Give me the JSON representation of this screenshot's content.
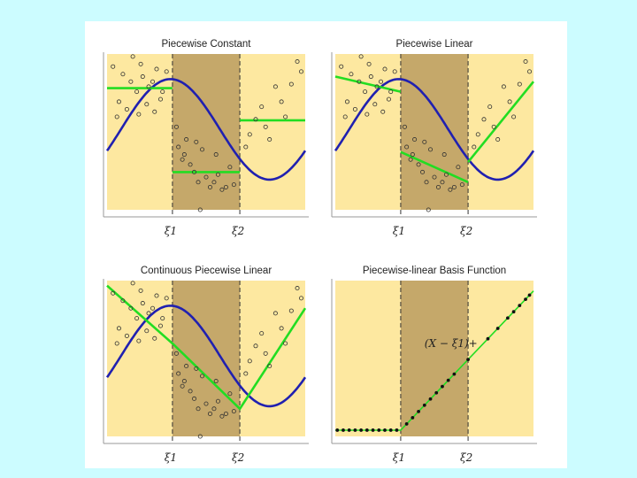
{
  "colors": {
    "page_bg": "#ccfcff",
    "sheet_bg": "#ffffff",
    "outer_region": "#fde8a0",
    "middle_region": "#c5a86a",
    "true_curve": "#2020b0",
    "fit_line": "#22dd22",
    "knot_line": "#333333",
    "points": "#333333"
  },
  "chart_data": [
    {
      "type": "scatter",
      "title": "Piecewise Constant",
      "xlim": [
        0,
        1
      ],
      "ylim": [
        -1.6,
        1.5
      ],
      "knots": [
        0.33,
        0.67
      ],
      "knot_labels": [
        "ξ1",
        "ξ2"
      ],
      "curve": {
        "name": "true function",
        "function": "sin(2*pi*(x-0.07))",
        "x": [
          0,
          1
        ]
      },
      "points": [
        [
          0.03,
          1.25
        ],
        [
          0.06,
          0.55
        ],
        [
          0.08,
          1.1
        ],
        [
          0.12,
          0.95
        ],
        [
          0.13,
          1.45
        ],
        [
          0.15,
          0.75
        ],
        [
          0.17,
          1.3
        ],
        [
          0.18,
          1.05
        ],
        [
          0.21,
          0.85
        ],
        [
          0.23,
          0.95
        ],
        [
          0.25,
          1.2
        ],
        [
          0.27,
          0.6
        ],
        [
          0.05,
          0.25
        ],
        [
          0.1,
          0.4
        ],
        [
          0.16,
          0.3
        ],
        [
          0.2,
          0.5
        ],
        [
          0.24,
          0.35
        ],
        [
          0.28,
          0.75
        ],
        [
          0.3,
          1.15
        ],
        [
          0.36,
          -0.35
        ],
        [
          0.38,
          -0.6
        ],
        [
          0.4,
          -0.2
        ],
        [
          0.42,
          -0.7
        ],
        [
          0.44,
          -0.85
        ],
        [
          0.46,
          -1.05
        ],
        [
          0.48,
          -0.4
        ],
        [
          0.5,
          -0.95
        ],
        [
          0.52,
          -1.15
        ],
        [
          0.54,
          -1.05
        ],
        [
          0.56,
          -0.9
        ],
        [
          0.58,
          -1.2
        ],
        [
          0.6,
          -1.15
        ],
        [
          0.62,
          -0.75
        ],
        [
          0.47,
          -1.6
        ],
        [
          0.35,
          0.05
        ],
        [
          0.39,
          -0.5
        ],
        [
          0.45,
          -0.25
        ],
        [
          0.55,
          -0.5
        ],
        [
          0.64,
          -1.1
        ],
        [
          0.72,
          -0.1
        ],
        [
          0.75,
          0.2
        ],
        [
          0.78,
          0.45
        ],
        [
          0.8,
          0.05
        ],
        [
          0.82,
          -0.2
        ],
        [
          0.85,
          0.85
        ],
        [
          0.88,
          0.55
        ],
        [
          0.9,
          0.25
        ],
        [
          0.93,
          0.9
        ],
        [
          0.96,
          1.35
        ],
        [
          0.98,
          1.15
        ],
        [
          0.7,
          -0.35
        ]
      ],
      "fit": [
        {
          "x": [
            0,
            0.33
          ],
          "y": [
            0.82,
            0.82
          ]
        },
        {
          "x": [
            0.33,
            0.67
          ],
          "y": [
            -0.85,
            -0.85
          ]
        },
        {
          "x": [
            0.67,
            1.0
          ],
          "y": [
            0.18,
            0.18
          ]
        }
      ],
      "annotation": ""
    },
    {
      "type": "scatter",
      "title": "Piecewise Linear",
      "xlim": [
        0,
        1
      ],
      "ylim": [
        -1.6,
        1.5
      ],
      "knots": [
        0.33,
        0.67
      ],
      "knot_labels": [
        "ξ1",
        "ξ2"
      ],
      "curve": {
        "name": "true function",
        "function": "sin(2*pi*(x-0.07))",
        "x": [
          0,
          1
        ]
      },
      "points": [
        [
          0.03,
          1.25
        ],
        [
          0.06,
          0.55
        ],
        [
          0.08,
          1.1
        ],
        [
          0.12,
          0.95
        ],
        [
          0.13,
          1.45
        ],
        [
          0.15,
          0.75
        ],
        [
          0.17,
          1.3
        ],
        [
          0.18,
          1.05
        ],
        [
          0.21,
          0.85
        ],
        [
          0.23,
          0.95
        ],
        [
          0.25,
          1.2
        ],
        [
          0.27,
          0.6
        ],
        [
          0.05,
          0.25
        ],
        [
          0.1,
          0.4
        ],
        [
          0.16,
          0.3
        ],
        [
          0.2,
          0.5
        ],
        [
          0.24,
          0.35
        ],
        [
          0.28,
          0.75
        ],
        [
          0.3,
          1.15
        ],
        [
          0.36,
          -0.35
        ],
        [
          0.38,
          -0.6
        ],
        [
          0.4,
          -0.2
        ],
        [
          0.42,
          -0.7
        ],
        [
          0.44,
          -0.85
        ],
        [
          0.46,
          -1.05
        ],
        [
          0.48,
          -0.4
        ],
        [
          0.5,
          -0.95
        ],
        [
          0.52,
          -1.15
        ],
        [
          0.54,
          -1.05
        ],
        [
          0.56,
          -0.9
        ],
        [
          0.58,
          -1.2
        ],
        [
          0.6,
          -1.15
        ],
        [
          0.62,
          -0.75
        ],
        [
          0.47,
          -1.6
        ],
        [
          0.35,
          0.05
        ],
        [
          0.39,
          -0.5
        ],
        [
          0.45,
          -0.25
        ],
        [
          0.55,
          -0.5
        ],
        [
          0.64,
          -1.1
        ],
        [
          0.72,
          -0.1
        ],
        [
          0.75,
          0.2
        ],
        [
          0.78,
          0.45
        ],
        [
          0.8,
          0.05
        ],
        [
          0.82,
          -0.2
        ],
        [
          0.85,
          0.85
        ],
        [
          0.88,
          0.55
        ],
        [
          0.9,
          0.25
        ],
        [
          0.93,
          0.9
        ],
        [
          0.96,
          1.35
        ],
        [
          0.98,
          1.15
        ],
        [
          0.7,
          -0.35
        ]
      ],
      "fit": [
        {
          "x": [
            0,
            0.33
          ],
          "y": [
            1.05,
            0.75
          ]
        },
        {
          "x": [
            0.33,
            0.67
          ],
          "y": [
            -0.45,
            -1.05
          ]
        },
        {
          "x": [
            0.67,
            1.0
          ],
          "y": [
            -0.65,
            0.95
          ]
        }
      ],
      "annotation": ""
    },
    {
      "type": "scatter",
      "title": "Continuous Piecewise Linear",
      "xlim": [
        0,
        1
      ],
      "ylim": [
        -1.6,
        1.5
      ],
      "knots": [
        0.33,
        0.67
      ],
      "knot_labels": [
        "ξ1",
        "ξ2"
      ],
      "curve": {
        "name": "true function",
        "function": "sin(2*pi*(x-0.07))",
        "x": [
          0,
          1
        ]
      },
      "points": [
        [
          0.03,
          1.25
        ],
        [
          0.06,
          0.55
        ],
        [
          0.08,
          1.1
        ],
        [
          0.12,
          0.95
        ],
        [
          0.13,
          1.45
        ],
        [
          0.15,
          0.75
        ],
        [
          0.17,
          1.3
        ],
        [
          0.18,
          1.05
        ],
        [
          0.21,
          0.85
        ],
        [
          0.23,
          0.95
        ],
        [
          0.25,
          1.2
        ],
        [
          0.27,
          0.6
        ],
        [
          0.05,
          0.25
        ],
        [
          0.1,
          0.4
        ],
        [
          0.16,
          0.3
        ],
        [
          0.2,
          0.5
        ],
        [
          0.24,
          0.35
        ],
        [
          0.28,
          0.75
        ],
        [
          0.3,
          1.15
        ],
        [
          0.36,
          -0.35
        ],
        [
          0.38,
          -0.6
        ],
        [
          0.4,
          -0.2
        ],
        [
          0.42,
          -0.7
        ],
        [
          0.44,
          -0.85
        ],
        [
          0.46,
          -1.05
        ],
        [
          0.48,
          -0.4
        ],
        [
          0.5,
          -0.95
        ],
        [
          0.52,
          -1.15
        ],
        [
          0.54,
          -1.05
        ],
        [
          0.56,
          -0.9
        ],
        [
          0.58,
          -1.2
        ],
        [
          0.6,
          -1.15
        ],
        [
          0.62,
          -0.75
        ],
        [
          0.47,
          -1.6
        ],
        [
          0.35,
          0.05
        ],
        [
          0.39,
          -0.5
        ],
        [
          0.45,
          -0.25
        ],
        [
          0.55,
          -0.5
        ],
        [
          0.64,
          -1.1
        ],
        [
          0.72,
          -0.1
        ],
        [
          0.75,
          0.2
        ],
        [
          0.78,
          0.45
        ],
        [
          0.8,
          0.05
        ],
        [
          0.82,
          -0.2
        ],
        [
          0.85,
          0.85
        ],
        [
          0.88,
          0.55
        ],
        [
          0.9,
          0.25
        ],
        [
          0.93,
          0.9
        ],
        [
          0.96,
          1.35
        ],
        [
          0.98,
          1.15
        ],
        [
          0.7,
          -0.35
        ]
      ],
      "fit": [
        {
          "x": [
            0,
            0.33,
            0.67,
            1.0
          ],
          "y": [
            1.4,
            0.25,
            -1.05,
            0.95
          ]
        }
      ],
      "annotation": ""
    },
    {
      "type": "line",
      "title": "Piecewise-linear Basis Function",
      "xlim": [
        0,
        1
      ],
      "ylim": [
        -0.03,
        0.72
      ],
      "knots": [
        0.33,
        0.67
      ],
      "knot_labels": [
        "ξ1",
        "ξ2"
      ],
      "basis_knot": 0.33,
      "points": [
        [
          0.01,
          0
        ],
        [
          0.04,
          0
        ],
        [
          0.07,
          0
        ],
        [
          0.1,
          0
        ],
        [
          0.13,
          0
        ],
        [
          0.16,
          0
        ],
        [
          0.19,
          0
        ],
        [
          0.22,
          0
        ],
        [
          0.25,
          0
        ],
        [
          0.28,
          0
        ],
        [
          0.31,
          0
        ],
        [
          0.36,
          0.03
        ],
        [
          0.39,
          0.06
        ],
        [
          0.42,
          0.09
        ],
        [
          0.45,
          0.12
        ],
        [
          0.48,
          0.15
        ],
        [
          0.51,
          0.18
        ],
        [
          0.54,
          0.21
        ],
        [
          0.57,
          0.24
        ],
        [
          0.6,
          0.27
        ],
        [
          0.67,
          0.34
        ],
        [
          0.77,
          0.44
        ],
        [
          0.82,
          0.49
        ],
        [
          0.87,
          0.54
        ],
        [
          0.9,
          0.57
        ],
        [
          0.93,
          0.6
        ],
        [
          0.96,
          0.63
        ],
        [
          0.98,
          0.65
        ]
      ],
      "fit": [
        {
          "x": [
            0.0,
            0.33,
            1.0
          ],
          "y": [
            0.0,
            0.0,
            0.67
          ]
        }
      ],
      "annotation": "(X − ξ1)+",
      "annotation_pos": [
        0.45,
        0.4
      ]
    }
  ]
}
